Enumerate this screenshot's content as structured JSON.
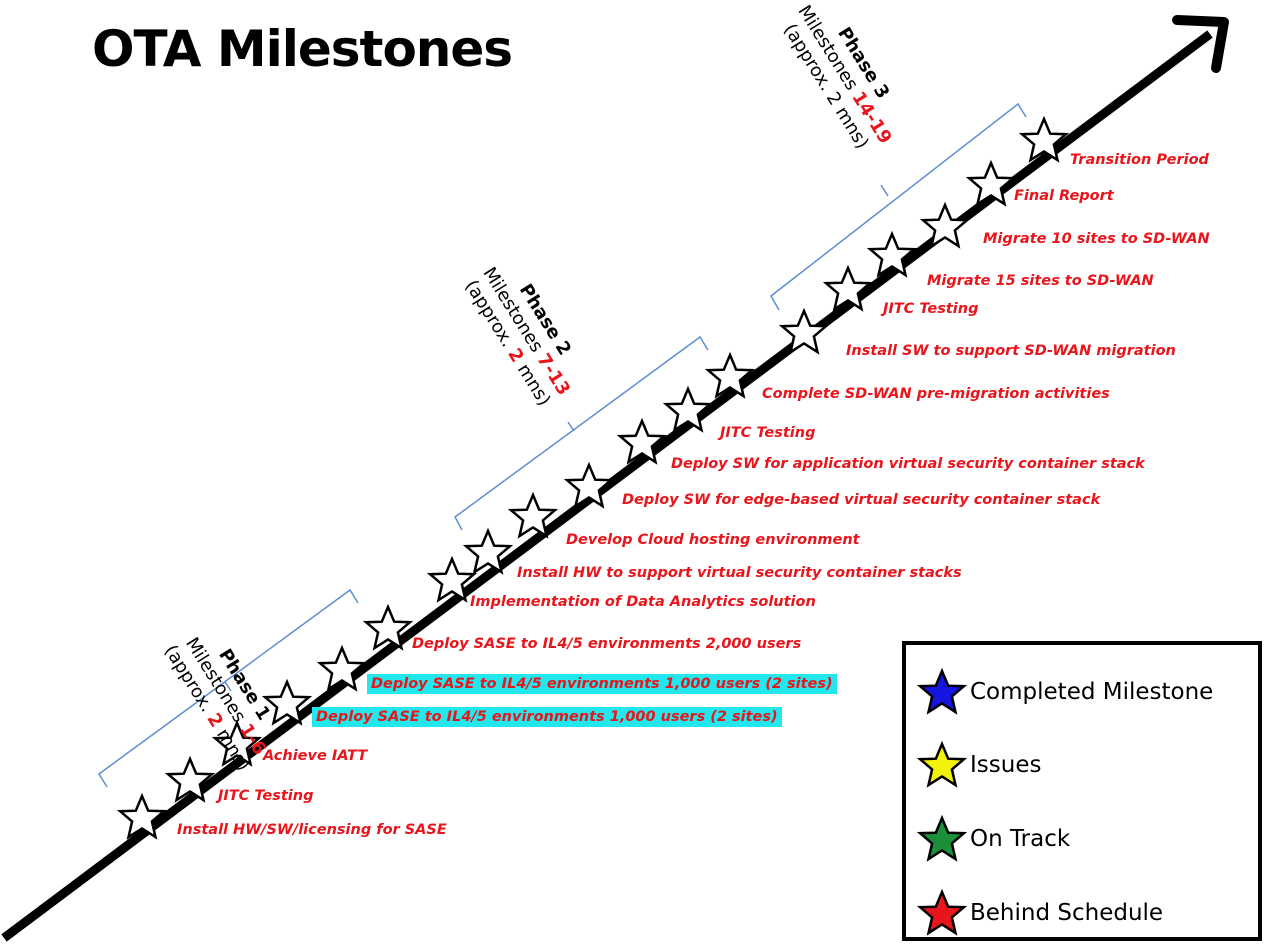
{
  "title": "OTA Milestones",
  "milestones": [
    {
      "label": "Install HW/SW/licensing for SASE",
      "highlight": false
    },
    {
      "label": "JITC Testing",
      "highlight": false
    },
    {
      "label": "Achieve IATT",
      "highlight": false
    },
    {
      "label": "Deploy SASE to IL4/5 environments 1,000  users (2 sites)",
      "highlight": true
    },
    {
      "label": "Deploy SASE to IL4/5 environments 1,000  users (2 sites)",
      "highlight": true
    },
    {
      "label": "Deploy SASE to IL4/5 environments 2,000 users",
      "highlight": false
    },
    {
      "label": "Implementation of Data Analytics solution",
      "highlight": false
    },
    {
      "label": "Install HW to support  virtual security container stacks",
      "highlight": false
    },
    {
      "label": "Develop Cloud hosting  environment",
      "highlight": false
    },
    {
      "label": "Deploy SW for edge-based  virtual security container stack",
      "highlight": false
    },
    {
      "label": "Deploy SW for application  virtual security container stack",
      "highlight": false
    },
    {
      "label": "JITC Testing",
      "highlight": false
    },
    {
      "label": "Complete SD-WAN pre-migration activities",
      "highlight": false
    },
    {
      "label": "Install SW to support  SD-WAN migration",
      "highlight": false
    },
    {
      "label": "JITC Testing",
      "highlight": false
    },
    {
      "label": "Migrate 15 sites to SD-WAN",
      "highlight": false
    },
    {
      "label": "Migrate 10 sites to SD-WAN",
      "highlight": false
    },
    {
      "label": "Final Report",
      "highlight": false
    },
    {
      "label": "Transition  Period",
      "highlight": false
    }
  ],
  "phases": [
    {
      "name": "Phase 1",
      "milestones_prefix": "Milestones ",
      "range": "1-6",
      "approx_prefix": "(approx. ",
      "approx_value": "2",
      "approx_suffix": " mns)"
    },
    {
      "name": "Phase 2",
      "milestones_prefix": "Milestones ",
      "range": "7-13",
      "approx_prefix": "(approx. ",
      "approx_value": "2",
      "approx_suffix": " mns)"
    },
    {
      "name": "Phase 3",
      "milestones_prefix": "Milestones ",
      "range": "14-19",
      "approx_prefix": "(approx. 2 mns)",
      "approx_value": "",
      "approx_suffix": ""
    }
  ],
  "legend": [
    {
      "label": "Completed Milestone",
      "color": "#1515e0"
    },
    {
      "label": "Issues",
      "color": "#f2f20a"
    },
    {
      "label": "On Track",
      "color": "#1c8f3a"
    },
    {
      "label": "Behind Schedule",
      "color": "#e8161c"
    }
  ],
  "colors": {
    "label_text": "#e8161c",
    "highlight_bg": "#22e8ee",
    "bracket": "#5b8fd1",
    "star_fill": "#ffffff"
  }
}
